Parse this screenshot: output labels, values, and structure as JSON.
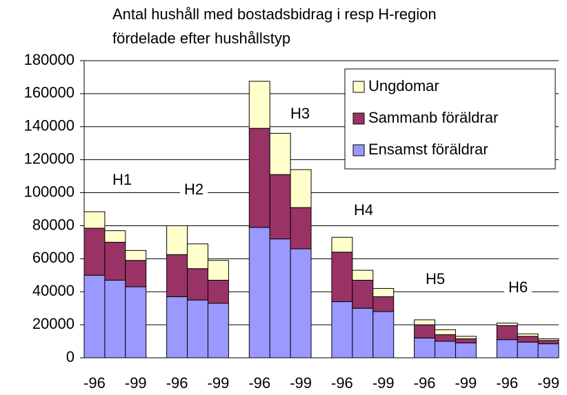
{
  "chart_data": {
    "type": "stacked_bar",
    "title": [
      "Antal hushåll med bostadsbidrag i resp H-region",
      "fördelade efter hushållstyp"
    ],
    "categories": [
      "-96",
      null,
      "-99",
      null,
      "-96",
      null,
      "-99",
      null,
      "-96",
      null,
      "-99",
      null,
      "-96",
      null,
      "-99",
      null,
      "-96",
      null,
      "-99",
      null,
      "-96",
      null,
      "-99"
    ],
    "series": [
      {
        "name": "Ensamst föräldrar",
        "color": "#9999ff",
        "values": [
          50000,
          47000,
          43000,
          null,
          37000,
          35000,
          33000,
          null,
          79000,
          72000,
          66000,
          null,
          34000,
          30000,
          28000,
          null,
          12000,
          10000,
          9000,
          null,
          11000,
          9500,
          8500
        ]
      },
      {
        "name": "Sammanb föräldrar",
        "color": "#993366",
        "values": [
          28500,
          23000,
          16000,
          null,
          25500,
          19000,
          14000,
          null,
          60000,
          39000,
          25000,
          null,
          30000,
          17000,
          9000,
          null,
          8000,
          4000,
          2500,
          null,
          8500,
          3500,
          2000
        ]
      },
      {
        "name": "Ungdomar",
        "color": "#ffffcc",
        "values": [
          10000,
          7000,
          6000,
          null,
          17500,
          15000,
          12000,
          null,
          28500,
          25000,
          23000,
          null,
          9000,
          6000,
          5000,
          null,
          3000,
          3000,
          1500,
          null,
          1500,
          1500,
          1000
        ]
      }
    ],
    "annotations": [
      "H1",
      "H2",
      "H3",
      "H4",
      "H5",
      "H6"
    ],
    "ylim": [
      0,
      180000
    ],
    "yticks": [
      0,
      20000,
      40000,
      60000,
      80000,
      100000,
      120000,
      140000,
      160000,
      180000
    ],
    "grid": true,
    "legend": "upper right"
  }
}
